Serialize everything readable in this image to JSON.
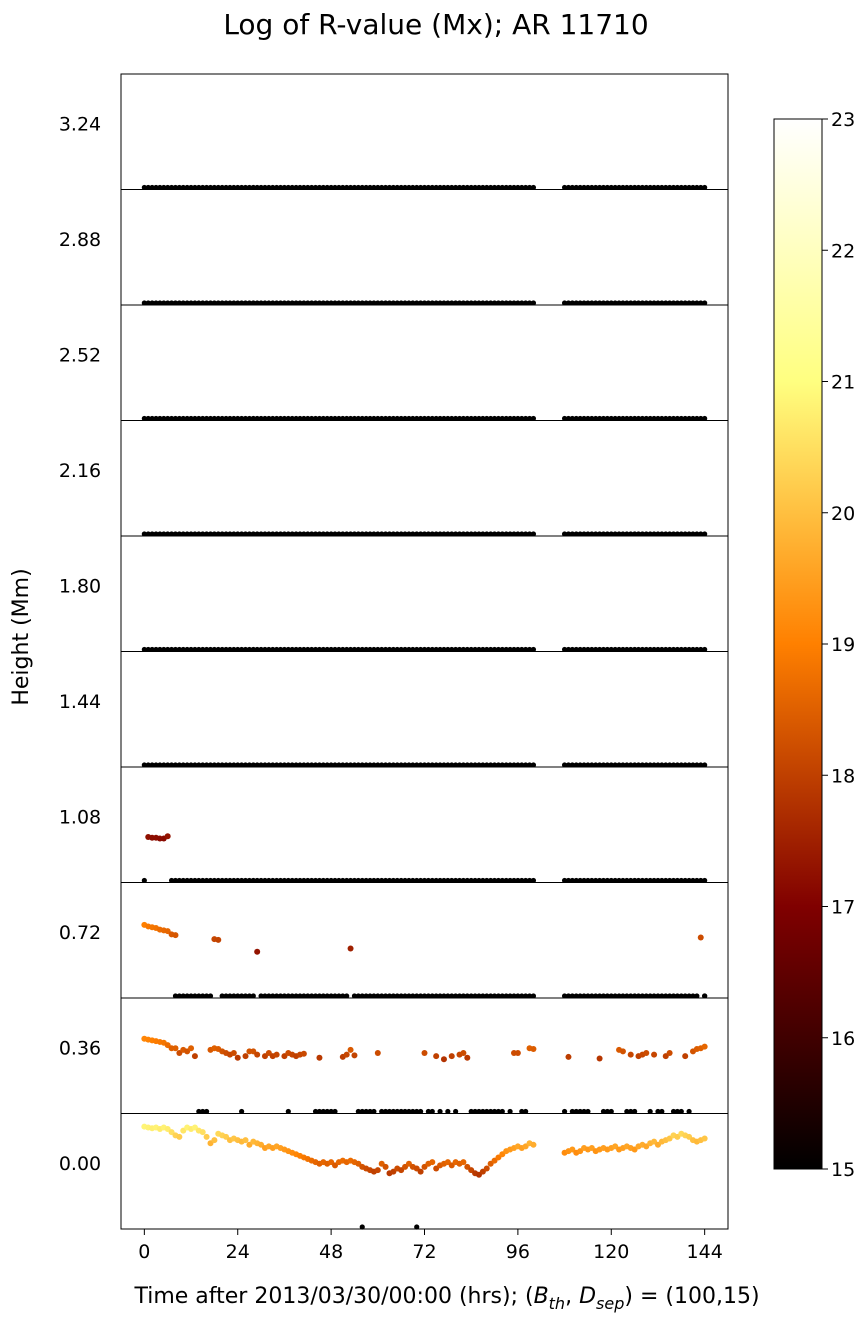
{
  "chart_data": {
    "type": "scatter",
    "title": "Log of R-value (Mx); AR 11710",
    "xlabel_parts": [
      "Time after 2013/03/30/00:00 (hrs); (",
      "B",
      "th",
      ", ",
      "D",
      "sep",
      ") = (100,15)"
    ],
    "ylabel": "Height (Mm)",
    "xlim": [
      -6,
      150
    ],
    "x_ticks": [
      0,
      24,
      48,
      72,
      96,
      120,
      144
    ],
    "x_tick_labels": [
      "0",
      "24",
      "48",
      "72",
      "96",
      "120",
      "144"
    ],
    "data_gap_hours": [
      100,
      108
    ],
    "panel_heights": [
      "3.24",
      "2.88",
      "2.52",
      "2.16",
      "1.80",
      "1.44",
      "1.08",
      "0.72",
      "0.36",
      "0.00"
    ],
    "colorbar": {
      "colormap": "afmhot",
      "min": 15,
      "max": 23,
      "ticks": [
        "15",
        "16",
        "17",
        "18",
        "19",
        "20",
        "21",
        "22",
        "23"
      ]
    },
    "grid": false,
    "baseline_value": 15,
    "panels": [
      {
        "height": "3.24",
        "baseline": "full"
      },
      {
        "height": "2.88",
        "baseline": "full"
      },
      {
        "height": "2.52",
        "baseline": "full"
      },
      {
        "height": "2.16",
        "baseline": "full"
      },
      {
        "height": "1.80",
        "baseline": "full"
      },
      {
        "height": "1.44",
        "baseline": "full"
      },
      {
        "height": "1.08",
        "baseline": "from 7 h (one point at 0 h)",
        "points": [
          [
            1,
            17.25
          ],
          [
            2,
            17.2
          ],
          [
            3,
            17.2
          ],
          [
            4,
            17.15
          ],
          [
            5,
            17.15
          ],
          [
            6,
            17.3
          ]
        ]
      },
      {
        "height": "0.72",
        "baseline": "from 8 h, with gaps",
        "points": [
          [
            0,
            19.0
          ],
          [
            1,
            18.9
          ],
          [
            2,
            18.85
          ],
          [
            3,
            18.8
          ],
          [
            4,
            18.7
          ],
          [
            5,
            18.65
          ],
          [
            6,
            18.6
          ],
          [
            7,
            18.4
          ],
          [
            8,
            18.35
          ],
          [
            18,
            18.1
          ],
          [
            19,
            18.05
          ],
          [
            29,
            17.3
          ],
          [
            53,
            17.5
          ],
          [
            143,
            18.2
          ]
        ]
      },
      {
        "height": "0.36",
        "baseline": "sparse",
        "points": [
          [
            0,
            19.1
          ],
          [
            1,
            19.05
          ],
          [
            2,
            19.0
          ],
          [
            3,
            18.95
          ],
          [
            4,
            18.9
          ],
          [
            5,
            18.85
          ],
          [
            6,
            18.7
          ],
          [
            7,
            18.5
          ],
          [
            8,
            18.5
          ],
          [
            9,
            18.2
          ],
          [
            10,
            18.4
          ],
          [
            11,
            18.3
          ],
          [
            12,
            18.5
          ],
          [
            13,
            18.0
          ],
          [
            17,
            18.4
          ],
          [
            18,
            18.5
          ],
          [
            19,
            18.45
          ],
          [
            20,
            18.3
          ],
          [
            21,
            18.2
          ],
          [
            22,
            18.1
          ],
          [
            23,
            18.2
          ],
          [
            24,
            17.9
          ],
          [
            26,
            18.0
          ],
          [
            27,
            18.3
          ],
          [
            28,
            18.3
          ],
          [
            29,
            18.1
          ],
          [
            31,
            18.0
          ],
          [
            32,
            18.2
          ],
          [
            33,
            18.0
          ],
          [
            34,
            18.1
          ],
          [
            36,
            18.0
          ],
          [
            37,
            18.2
          ],
          [
            38,
            18.1
          ],
          [
            39,
            18.0
          ],
          [
            40,
            18.1
          ],
          [
            41,
            18.15
          ],
          [
            45,
            17.9
          ],
          [
            51,
            17.95
          ],
          [
            52,
            18.1
          ],
          [
            53,
            18.4
          ],
          [
            54,
            18.05
          ],
          [
            60,
            18.2
          ],
          [
            72,
            18.2
          ],
          [
            75,
            18.0
          ],
          [
            77,
            17.8
          ],
          [
            79,
            18.0
          ],
          [
            81,
            18.1
          ],
          [
            82,
            18.2
          ],
          [
            83,
            17.9
          ],
          [
            95,
            18.2
          ],
          [
            96,
            18.2
          ],
          [
            99,
            18.5
          ],
          [
            100,
            18.45
          ],
          [
            109,
            17.95
          ],
          [
            117,
            17.85
          ],
          [
            122,
            18.4
          ],
          [
            123,
            18.3
          ],
          [
            125,
            18.1
          ],
          [
            127,
            18.0
          ],
          [
            128,
            18.1
          ],
          [
            129,
            18.2
          ],
          [
            131,
            18.1
          ],
          [
            134,
            18.0
          ],
          [
            135,
            18.2
          ],
          [
            139,
            18.0
          ],
          [
            141,
            18.3
          ],
          [
            142,
            18.45
          ],
          [
            143,
            18.5
          ],
          [
            144,
            18.6
          ]
        ]
      },
      {
        "height": "0.00",
        "baseline": "isolated points below",
        "points": [
          [
            0,
            20.85
          ],
          [
            1,
            20.8
          ],
          [
            2,
            20.75
          ],
          [
            3,
            20.8
          ],
          [
            4,
            20.7
          ],
          [
            5,
            20.8
          ],
          [
            6,
            20.7
          ],
          [
            7,
            20.5
          ],
          [
            8,
            20.3
          ],
          [
            9,
            20.2
          ],
          [
            10,
            20.6
          ],
          [
            11,
            20.8
          ],
          [
            12,
            20.7
          ],
          [
            13,
            20.8
          ],
          [
            14,
            20.6
          ],
          [
            15,
            20.5
          ],
          [
            16,
            20.2
          ],
          [
            17,
            19.8
          ],
          [
            18,
            20.0
          ],
          [
            19,
            20.4
          ],
          [
            20,
            20.3
          ],
          [
            21,
            20.2
          ],
          [
            22,
            20.0
          ],
          [
            23,
            20.1
          ],
          [
            24,
            20.0
          ],
          [
            25,
            19.9
          ],
          [
            26,
            20.0
          ],
          [
            27,
            19.7
          ],
          [
            28,
            19.9
          ],
          [
            29,
            19.8
          ],
          [
            30,
            19.7
          ],
          [
            31,
            19.5
          ],
          [
            32,
            19.6
          ],
          [
            33,
            19.5
          ],
          [
            34,
            19.6
          ],
          [
            35,
            19.5
          ],
          [
            36,
            19.4
          ],
          [
            37,
            19.3
          ],
          [
            38,
            19.2
          ],
          [
            39,
            19.1
          ],
          [
            40,
            19.0
          ],
          [
            41,
            18.9
          ],
          [
            42,
            18.8
          ],
          [
            43,
            18.7
          ],
          [
            44,
            18.6
          ],
          [
            45,
            18.5
          ],
          [
            46,
            18.6
          ],
          [
            47,
            18.5
          ],
          [
            48,
            18.6
          ],
          [
            49,
            18.4
          ],
          [
            50,
            18.6
          ],
          [
            51,
            18.7
          ],
          [
            52,
            18.6
          ],
          [
            53,
            18.7
          ],
          [
            54,
            18.6
          ],
          [
            55,
            18.5
          ],
          [
            56,
            18.3
          ],
          [
            57,
            18.2
          ],
          [
            58,
            18.1
          ],
          [
            59,
            18.0
          ],
          [
            60,
            18.1
          ],
          [
            61,
            18.5
          ],
          [
            62,
            18.3
          ],
          [
            63,
            17.9
          ],
          [
            64,
            18.0
          ],
          [
            65,
            18.2
          ],
          [
            66,
            18.1
          ],
          [
            67,
            18.3
          ],
          [
            68,
            18.5
          ],
          [
            69,
            18.3
          ],
          [
            70,
            18.2
          ],
          [
            71,
            18.0
          ],
          [
            72,
            18.3
          ],
          [
            73,
            18.5
          ],
          [
            74,
            18.6
          ],
          [
            75,
            18.2
          ],
          [
            76,
            18.4
          ],
          [
            77,
            18.5
          ],
          [
            78,
            18.6
          ],
          [
            79,
            18.4
          ],
          [
            80,
            18.6
          ],
          [
            81,
            18.5
          ],
          [
            82,
            18.6
          ],
          [
            83,
            18.3
          ],
          [
            84,
            18.1
          ],
          [
            85,
            17.9
          ],
          [
            86,
            17.8
          ],
          [
            87,
            18.0
          ],
          [
            88,
            18.2
          ],
          [
            89,
            18.5
          ],
          [
            90,
            18.7
          ],
          [
            91,
            18.9
          ],
          [
            92,
            19.1
          ],
          [
            93,
            19.3
          ],
          [
            94,
            19.4
          ],
          [
            95,
            19.5
          ],
          [
            96,
            19.6
          ],
          [
            97,
            19.5
          ],
          [
            98,
            19.6
          ],
          [
            99,
            19.8
          ],
          [
            100,
            19.7
          ],
          [
            108,
            19.2
          ],
          [
            109,
            19.3
          ],
          [
            110,
            19.4
          ],
          [
            111,
            19.2
          ],
          [
            112,
            19.3
          ],
          [
            113,
            19.5
          ],
          [
            114,
            19.4
          ],
          [
            115,
            19.5
          ],
          [
            116,
            19.3
          ],
          [
            117,
            19.4
          ],
          [
            118,
            19.5
          ],
          [
            119,
            19.4
          ],
          [
            120,
            19.5
          ],
          [
            121,
            19.6
          ],
          [
            122,
            19.4
          ],
          [
            123,
            19.5
          ],
          [
            124,
            19.6
          ],
          [
            125,
            19.5
          ],
          [
            126,
            19.4
          ],
          [
            127,
            19.6
          ],
          [
            128,
            19.7
          ],
          [
            129,
            19.6
          ],
          [
            130,
            19.8
          ],
          [
            131,
            19.9
          ],
          [
            132,
            19.7
          ],
          [
            133,
            19.9
          ],
          [
            134,
            20.0
          ],
          [
            135,
            20.1
          ],
          [
            136,
            20.3
          ],
          [
            137,
            20.2
          ],
          [
            138,
            20.4
          ],
          [
            139,
            20.3
          ],
          [
            140,
            20.2
          ],
          [
            141,
            20.0
          ],
          [
            142,
            19.9
          ],
          [
            143,
            20.0
          ],
          [
            144,
            20.1
          ]
        ]
      }
    ]
  }
}
